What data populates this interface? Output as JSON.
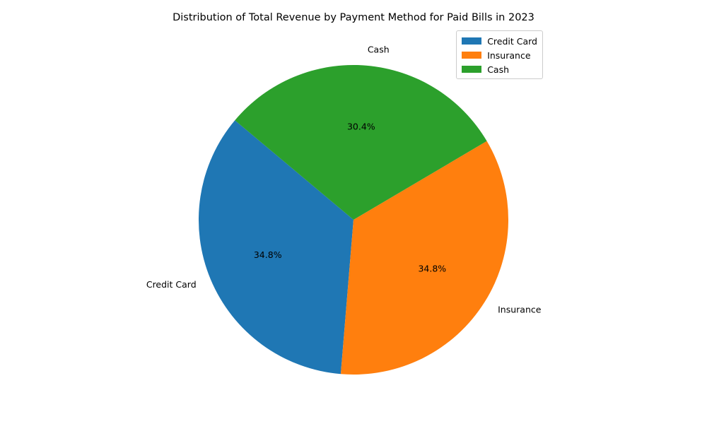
{
  "chart_data": {
    "type": "pie",
    "title": "Distribution of Total Revenue by Payment Method for Paid Bills in 2023",
    "labels": [
      "Credit Card",
      "Insurance",
      "Cash"
    ],
    "values": [
      34.8,
      34.8,
      30.4
    ],
    "percent_labels": [
      "34.8%",
      "34.8%",
      "30.4%"
    ],
    "colors": [
      "#1f77b4",
      "#ff7f0e",
      "#2ca02c"
    ],
    "start_angle_deg": 140,
    "direction": "counterclockwise",
    "legend": {
      "placement": "top-right",
      "entries": [
        "Credit Card",
        "Insurance",
        "Cash"
      ]
    }
  }
}
